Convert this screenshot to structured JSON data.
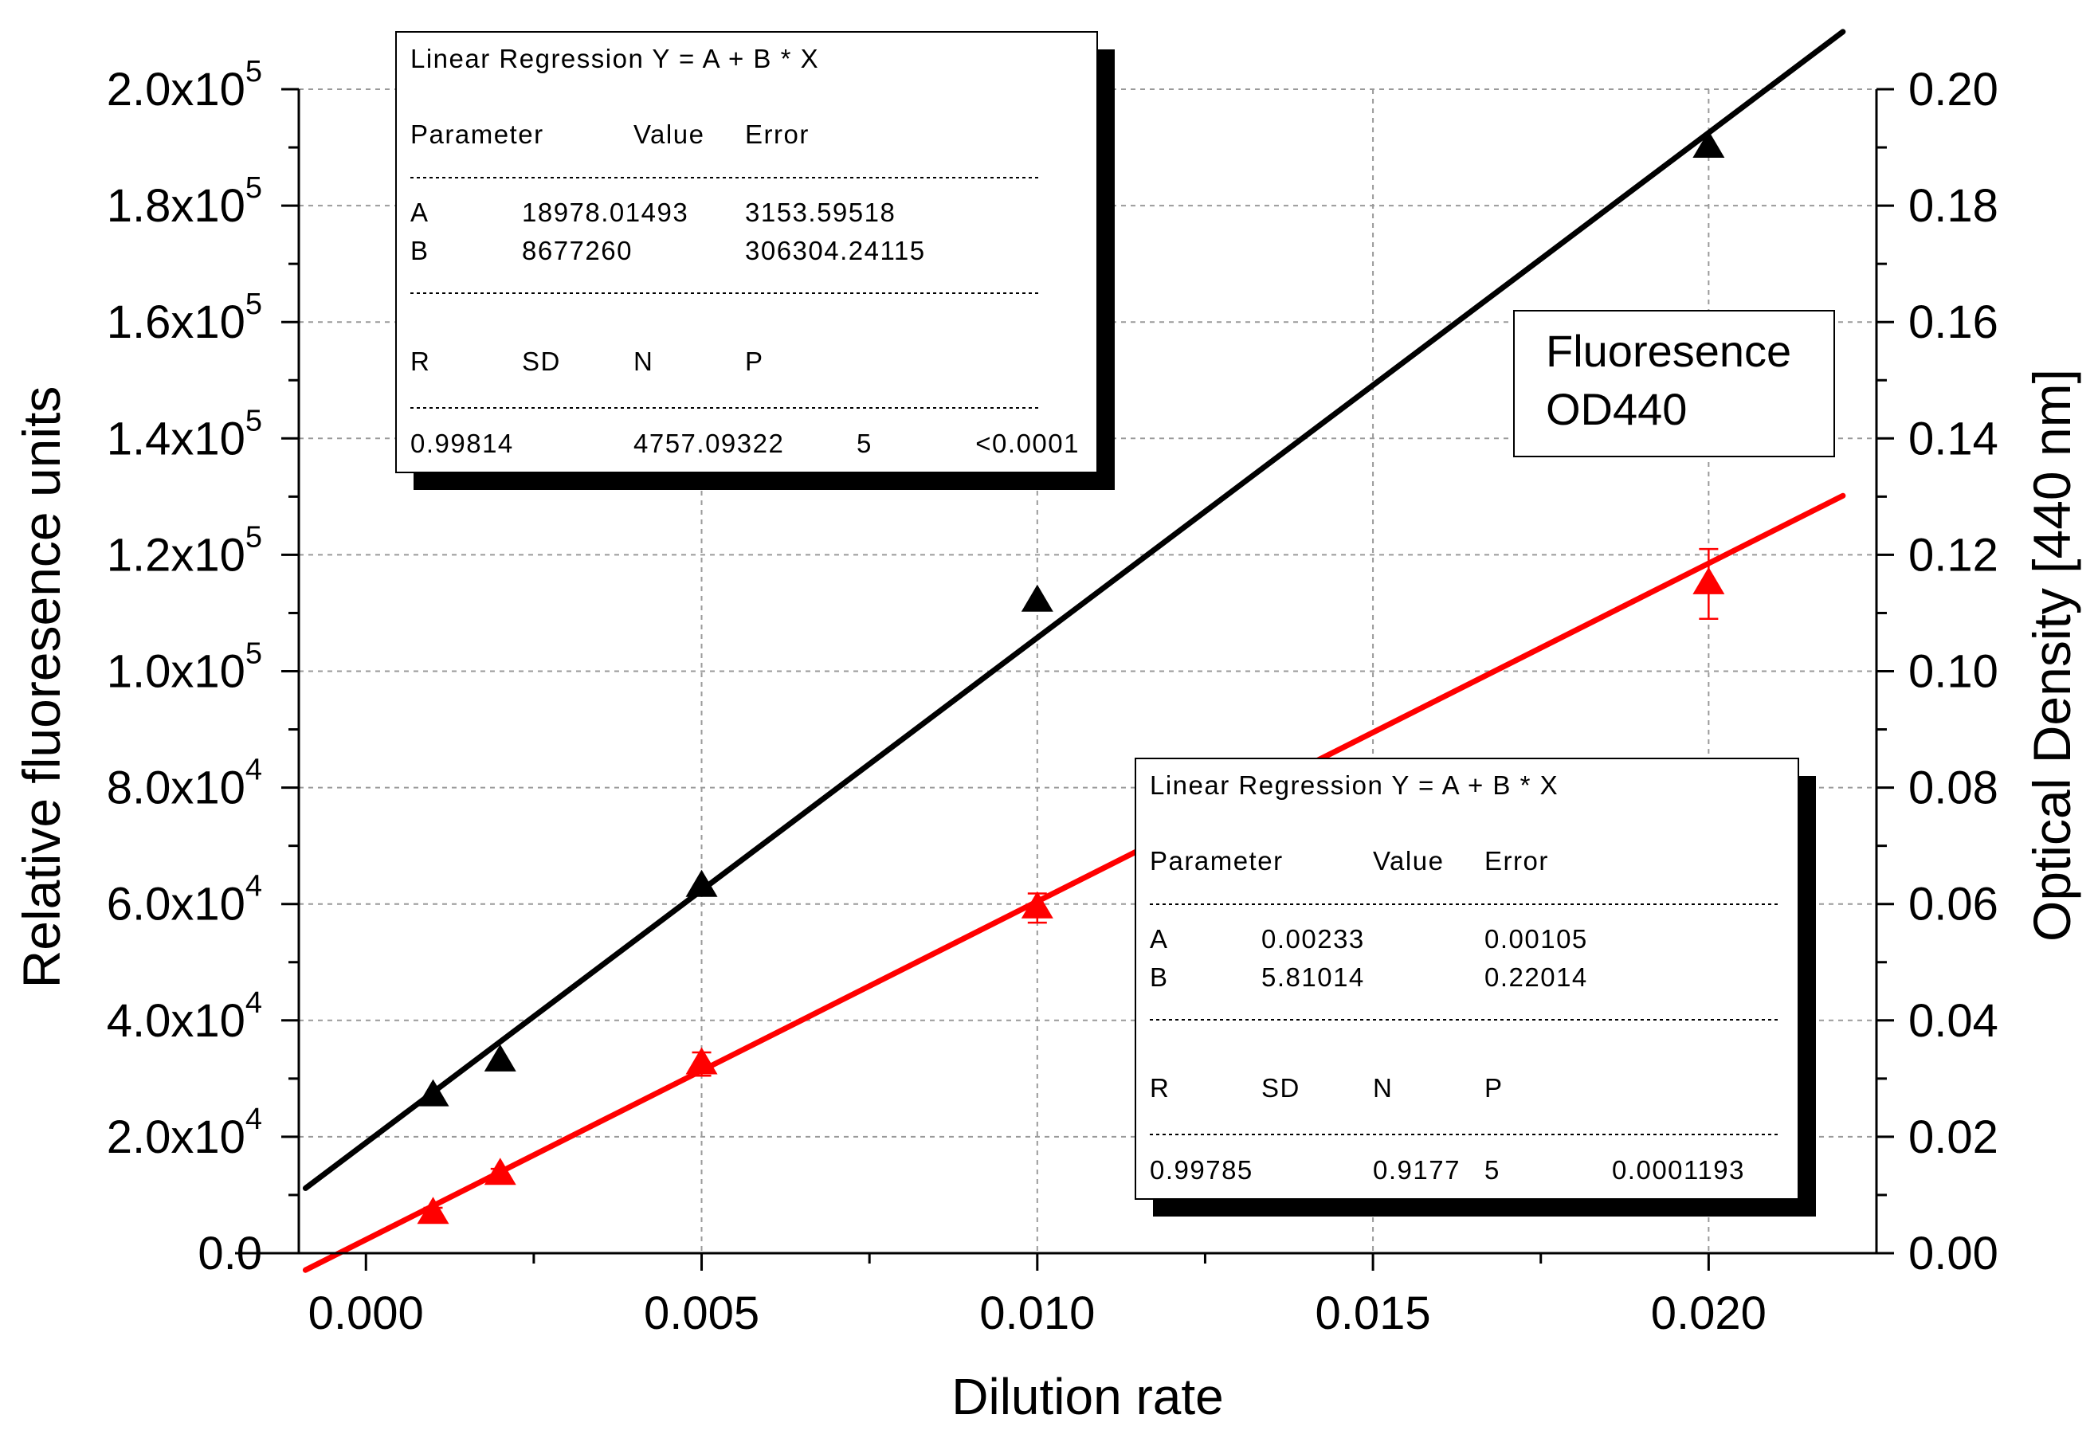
{
  "chart_data": {
    "type": "scatter",
    "title": "",
    "xlabel": "Dilution rate",
    "ylabel": "Relative fluoresence units",
    "y2label": "Optical Density [440 nm]",
    "xlim": [
      -0.001,
      0.0225
    ],
    "ylim": [
      0,
      200000
    ],
    "y2lim": [
      0,
      0.2
    ],
    "grid": true,
    "x_ticks": [
      {
        "value": 0.0,
        "label": "0.000"
      },
      {
        "value": 0.005,
        "label": "0.005"
      },
      {
        "value": 0.01,
        "label": "0.010"
      },
      {
        "value": 0.015,
        "label": "0.015"
      },
      {
        "value": 0.02,
        "label": "0.020"
      }
    ],
    "y_ticks": [
      {
        "value": 0,
        "label": "0.0",
        "exp": ""
      },
      {
        "value": 20000,
        "label": "2.0x10",
        "exp": "4"
      },
      {
        "value": 40000,
        "label": "4.0x10",
        "exp": "4"
      },
      {
        "value": 60000,
        "label": "6.0x10",
        "exp": "4"
      },
      {
        "value": 80000,
        "label": "8.0x10",
        "exp": "4"
      },
      {
        "value": 100000,
        "label": "1.0x10",
        "exp": "5"
      },
      {
        "value": 120000,
        "label": "1.2x10",
        "exp": "5"
      },
      {
        "value": 140000,
        "label": "1.4x10",
        "exp": "5"
      },
      {
        "value": 160000,
        "label": "1.6x10",
        "exp": "5"
      },
      {
        "value": 180000,
        "label": "1.8x10",
        "exp": "5"
      },
      {
        "value": 200000,
        "label": "2.0x10",
        "exp": "5"
      }
    ],
    "y2_ticks": [
      {
        "value": 0.0,
        "label": "0.00"
      },
      {
        "value": 0.02,
        "label": "0.02"
      },
      {
        "value": 0.04,
        "label": "0.04"
      },
      {
        "value": 0.06,
        "label": "0.06"
      },
      {
        "value": 0.08,
        "label": "0.08"
      },
      {
        "value": 0.1,
        "label": "0.10"
      },
      {
        "value": 0.12,
        "label": "0.12"
      },
      {
        "value": 0.14,
        "label": "0.14"
      },
      {
        "value": 0.16,
        "label": "0.16"
      },
      {
        "value": 0.18,
        "label": "0.18"
      },
      {
        "value": 0.2,
        "label": "0.20"
      }
    ],
    "legend": {
      "placement": "right",
      "entries": [
        "Fluoresence",
        "OD440"
      ]
    },
    "series": [
      {
        "name": "Fluoresence",
        "axis": "left",
        "color": "#000000",
        "marker": "triangle",
        "x": [
          0.001,
          0.002,
          0.005,
          0.01,
          0.02
        ],
        "y": [
          27000,
          33000,
          63000,
          112000,
          190000
        ],
        "fit": {
          "A": 18978.01493,
          "B": 8677260,
          "x_range": [
            -0.0009,
            0.022
          ]
        }
      },
      {
        "name": "OD440",
        "axis": "right",
        "color": "#ff0000",
        "marker": "triangle",
        "x": [
          0.001,
          0.002,
          0.005,
          0.01,
          0.02
        ],
        "y": [
          0.0068,
          0.0135,
          0.0325,
          0.0593,
          0.115
        ],
        "error": [
          0.001,
          0.001,
          0.002,
          0.0025,
          0.006
        ],
        "fit": {
          "A": 0.00233,
          "B": 5.81014,
          "x_range": [
            -0.0009,
            0.022
          ]
        }
      }
    ],
    "annotations": [
      {
        "title": "Linear Regression Y = A + B * X",
        "headers": [
          "Parameter",
          "Value",
          "Error"
        ],
        "rows": [
          [
            "A",
            "18978.01493",
            "3153.59518"
          ],
          [
            "B",
            "8677260",
            "306304.24115"
          ]
        ],
        "stat_headers": [
          "R",
          "SD",
          "N",
          "P"
        ],
        "stat_values": [
          "0.99814",
          "4757.09322",
          "5",
          "<0.0001"
        ]
      },
      {
        "title": "Linear Regression Y = A + B * X",
        "headers": [
          "Parameter",
          "Value",
          "Error"
        ],
        "rows": [
          [
            "A",
            "0.00233",
            "0.00105"
          ],
          [
            "B",
            "5.81014",
            "0.22014"
          ]
        ],
        "stat_headers": [
          "R",
          "SD",
          "N",
          "P"
        ],
        "stat_values": [
          "0.99785",
          "0.9177",
          "5",
          "0.0001193"
        ]
      }
    ]
  }
}
